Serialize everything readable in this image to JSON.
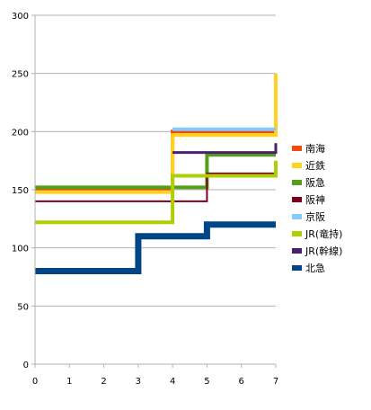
{
  "chart_data": {
    "type": "line",
    "step": true,
    "title": "",
    "xlabel": "",
    "ylabel": "",
    "xlim": [
      0,
      7
    ],
    "ylim": [
      0,
      300
    ],
    "x_ticks": [
      "0",
      "1",
      "2",
      "3",
      "4",
      "5",
      "6",
      "7"
    ],
    "y_ticks": [
      "0",
      "50",
      "100",
      "150",
      "200",
      "250",
      "300"
    ],
    "grid": "horizontal",
    "legend_position": "right",
    "series": [
      {
        "name": "南海",
        "color": "#f04a13",
        "width_pt": 4,
        "points": [
          [
            0,
            150
          ],
          [
            4,
            150
          ],
          [
            4,
            200
          ],
          [
            7,
            200
          ]
        ]
      },
      {
        "name": "近鉄",
        "color": "#ffd21e",
        "width_pt": 4,
        "points": [
          [
            0,
            148
          ],
          [
            4,
            148
          ],
          [
            4,
            197
          ],
          [
            7,
            197
          ],
          [
            7,
            250
          ]
        ]
      },
      {
        "name": "阪急",
        "color": "#579d1c",
        "width_pt": 4,
        "points": [
          [
            0,
            152
          ],
          [
            5,
            152
          ],
          [
            5,
            180
          ],
          [
            7,
            180
          ]
        ]
      },
      {
        "name": "阪神",
        "color": "#7e0021",
        "width_pt": 2,
        "points": [
          [
            0,
            140
          ],
          [
            5,
            140
          ],
          [
            5,
            164
          ],
          [
            7,
            164
          ]
        ]
      },
      {
        "name": "京阪",
        "color": "#83caff",
        "width_pt": 4,
        "points": [
          [
            4,
            202
          ],
          [
            7,
            202
          ]
        ]
      },
      {
        "name": "JR(竜持)",
        "color": "#aecf00",
        "width_pt": 4,
        "points": [
          [
            0,
            122
          ],
          [
            4,
            122
          ],
          [
            4,
            162
          ],
          [
            7,
            162
          ],
          [
            7,
            175
          ]
        ]
      },
      {
        "name": "JR(幹線)",
        "color": "#4b1f6f",
        "width_pt": 3,
        "points": [
          [
            4,
            182
          ],
          [
            7,
            182
          ],
          [
            7,
            190
          ]
        ]
      },
      {
        "name": "北急",
        "color": "#004586",
        "width_pt": 7,
        "points": [
          [
            0,
            80
          ],
          [
            3,
            80
          ],
          [
            3,
            110
          ],
          [
            5,
            110
          ],
          [
            5,
            120
          ],
          [
            7,
            120
          ]
        ]
      }
    ]
  }
}
